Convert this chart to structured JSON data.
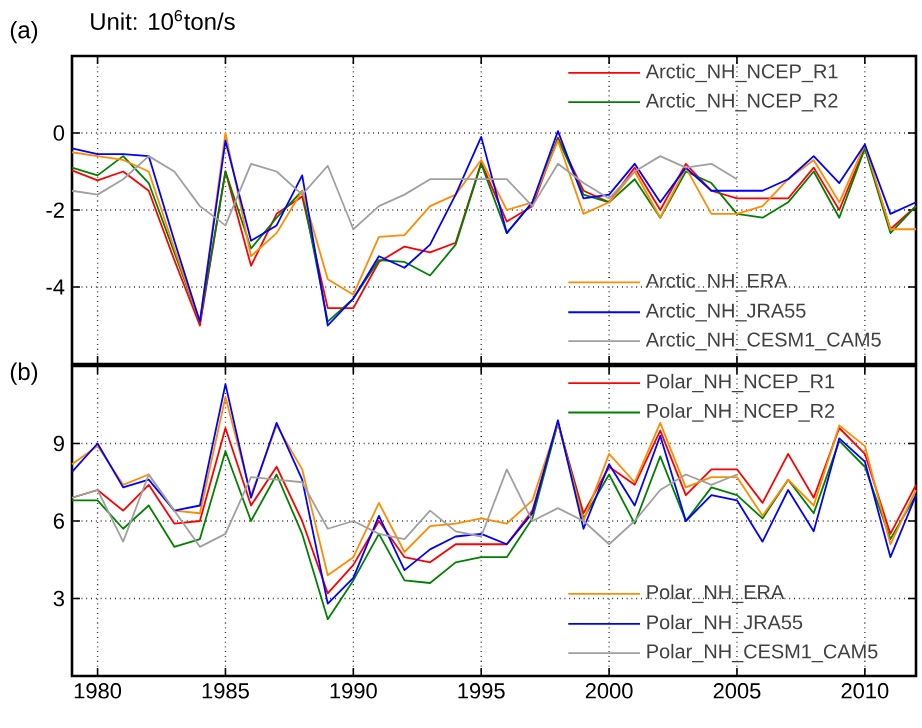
{
  "chart_data": [
    {
      "type": "line",
      "title": "Unit: 10$^{6}$ton/s",
      "annotations": [
        "(a)"
      ],
      "x": [
        1979,
        1980,
        1981,
        1982,
        1983,
        1984,
        1985,
        1986,
        1987,
        1988,
        1989,
        1990,
        1991,
        1992,
        1993,
        1994,
        1995,
        1996,
        1997,
        1998,
        1999,
        2000,
        2001,
        2002,
        2003,
        2004,
        2005,
        2006,
        2007,
        2008,
        2009,
        2010,
        2011,
        2012
      ],
      "xlim": [
        1979,
        2012
      ],
      "xticks": [
        1980,
        1985,
        1990,
        1995,
        2000,
        2005,
        2010
      ],
      "ylim": [
        -6,
        2
      ],
      "yticks": [
        -4,
        -2,
        0
      ],
      "tick_labels": "y",
      "grid": true,
      "legend": "right",
      "series": [
        {
          "name": "Arctic_NH_NCEP_R1",
          "color": "#ff0000",
          "values": [
            -0.97,
            -1.23,
            -1.0,
            -1.5,
            -3.3,
            -5.0,
            -1.0,
            -3.45,
            -2.1,
            -1.65,
            -4.55,
            -4.55,
            -3.35,
            -2.95,
            -3.1,
            -2.85,
            -0.77,
            -2.3,
            -1.9,
            -0.12,
            -1.5,
            -1.8,
            -0.9,
            -2.0,
            -0.8,
            -1.5,
            -1.7,
            -1.7,
            -1.7,
            -0.9,
            -2.0,
            -0.38,
            -2.5,
            -1.9
          ]
        },
        {
          "name": "Arctic_NH_NCEP_R2",
          "color": "#008000",
          "values": [
            -0.9,
            -1.1,
            -0.6,
            -1.3,
            -3.1,
            -4.9,
            -1.0,
            -3.0,
            -2.2,
            -1.5,
            -4.9,
            -4.3,
            -3.3,
            -3.35,
            -3.7,
            -2.9,
            -0.8,
            -2.6,
            -1.8,
            -0.15,
            -1.6,
            -1.8,
            -1.2,
            -2.2,
            -1.0,
            -1.3,
            -2.1,
            -2.2,
            -1.8,
            -1.0,
            -2.2,
            -0.4,
            -2.6,
            -1.9
          ]
        },
        {
          "name": "Arctic_NH_ERA",
          "color": "#ff8c00",
          "values": [
            -0.5,
            -0.6,
            -0.7,
            -1.0,
            -3.0,
            -4.9,
            0.0,
            -3.2,
            -2.6,
            -1.5,
            -3.8,
            -4.2,
            -2.7,
            -2.65,
            -1.9,
            -1.6,
            -0.7,
            -2.0,
            -1.8,
            -0.2,
            -2.1,
            -1.8,
            -1.0,
            -2.2,
            -0.9,
            -2.1,
            -2.1,
            -1.9,
            -1.2,
            -0.7,
            -1.8,
            -0.3,
            -2.5,
            -2.5
          ]
        },
        {
          "name": "Arctic_NH_JRA55",
          "color": "#0000ff",
          "values": [
            -0.4,
            -0.55,
            -0.55,
            -0.6,
            -2.8,
            -4.9,
            -0.2,
            -2.8,
            -2.4,
            -1.1,
            -5.0,
            -4.3,
            -3.2,
            -3.5,
            -2.9,
            -1.6,
            -0.1,
            -2.6,
            -1.8,
            0.05,
            -1.7,
            -1.6,
            -0.8,
            -1.8,
            -0.9,
            -1.5,
            -1.5,
            -1.5,
            -1.2,
            -0.6,
            -1.3,
            -0.3,
            -2.1,
            -1.8
          ]
        },
        {
          "name": "Arctic_NH_CESM1_CAM5",
          "color": "#a0a0a0",
          "values": [
            -1.5,
            -1.6,
            -1.2,
            -0.6,
            -1.0,
            -1.9,
            -2.4,
            -0.8,
            -1.0,
            -1.6,
            -0.85,
            -2.5,
            -1.9,
            -1.6,
            -1.2,
            -1.2,
            -1.2,
            -1.2,
            -1.9,
            -0.8,
            -1.3,
            -1.7,
            -1.0,
            -0.6,
            -0.9,
            -0.8,
            -1.2,
            null,
            null,
            null,
            null,
            null,
            null,
            null
          ]
        }
      ]
    },
    {
      "type": "line",
      "annotations": [
        "(b)"
      ],
      "x": [
        1979,
        1980,
        1981,
        1982,
        1983,
        1984,
        1985,
        1986,
        1987,
        1988,
        1989,
        1990,
        1991,
        1992,
        1993,
        1994,
        1995,
        1996,
        1997,
        1998,
        1999,
        2000,
        2001,
        2002,
        2003,
        2004,
        2005,
        2006,
        2007,
        2008,
        2009,
        2010,
        2011,
        2012
      ],
      "xlim": [
        1979,
        2012
      ],
      "xticks": [
        1980,
        1985,
        1990,
        1995,
        2000,
        2005,
        2010
      ],
      "ylim": [
        0,
        12
      ],
      "yticks": [
        3,
        6,
        9
      ],
      "grid": true,
      "legend": "right",
      "series": [
        {
          "name": "Polar_NH_NCEP_R1",
          "color": "#ff0000",
          "values": [
            6.9,
            7.2,
            6.4,
            7.4,
            5.9,
            6.0,
            9.6,
            6.6,
            8.1,
            6.0,
            3.2,
            4.3,
            6.0,
            4.6,
            4.4,
            5.1,
            5.1,
            5.1,
            6.4,
            9.8,
            6.3,
            8.1,
            7.4,
            9.5,
            7.0,
            8.0,
            8.0,
            6.7,
            8.6,
            6.9,
            9.6,
            8.6,
            5.5,
            7.4
          ]
        },
        {
          "name": "Polar_NH_NCEP_R2",
          "color": "#008000",
          "values": [
            6.8,
            6.8,
            5.7,
            6.6,
            5.0,
            5.3,
            8.7,
            6.0,
            7.8,
            5.5,
            2.2,
            3.7,
            5.5,
            3.7,
            3.6,
            4.4,
            4.6,
            4.6,
            6.1,
            9.8,
            6.1,
            7.8,
            5.9,
            8.5,
            6.0,
            7.3,
            7.0,
            6.1,
            7.6,
            6.3,
            9.1,
            8.1,
            5.3,
            7.0
          ]
        },
        {
          "name": "Polar_NH_ERA",
          "color": "#ff8c00",
          "values": [
            8.2,
            8.9,
            7.4,
            7.8,
            6.4,
            6.3,
            10.8,
            7.0,
            9.7,
            8.0,
            3.9,
            4.6,
            6.7,
            4.8,
            5.8,
            5.9,
            6.1,
            5.9,
            6.8,
            9.8,
            6.0,
            8.6,
            7.5,
            9.8,
            7.3,
            7.7,
            7.7,
            6.2,
            7.6,
            6.6,
            9.7,
            8.9,
            5.1,
            7.2
          ]
        },
        {
          "name": "Polar_NH_JRA55",
          "color": "#0000ff",
          "values": [
            7.9,
            9.0,
            7.3,
            7.6,
            6.4,
            6.6,
            11.3,
            6.9,
            9.8,
            7.6,
            2.8,
            3.8,
            6.2,
            4.1,
            4.9,
            5.4,
            5.5,
            5.1,
            6.3,
            9.9,
            5.7,
            8.2,
            6.6,
            9.3,
            6.0,
            7.0,
            6.8,
            5.2,
            7.2,
            5.6,
            9.2,
            8.3,
            4.6,
            7.0
          ]
        },
        {
          "name": "Polar_NH_CESM1_CAM5",
          "color": "#a0a0a0",
          "values": [
            6.9,
            7.2,
            5.2,
            7.8,
            6.4,
            5.0,
            5.5,
            7.7,
            7.6,
            7.5,
            5.7,
            6.0,
            5.5,
            5.3,
            6.4,
            5.6,
            5.4,
            8.0,
            6.0,
            6.5,
            6.0,
            5.1,
            6.0,
            7.2,
            7.8,
            7.4,
            7.8,
            null,
            null,
            null,
            null,
            null,
            null,
            null
          ]
        }
      ]
    }
  ]
}
